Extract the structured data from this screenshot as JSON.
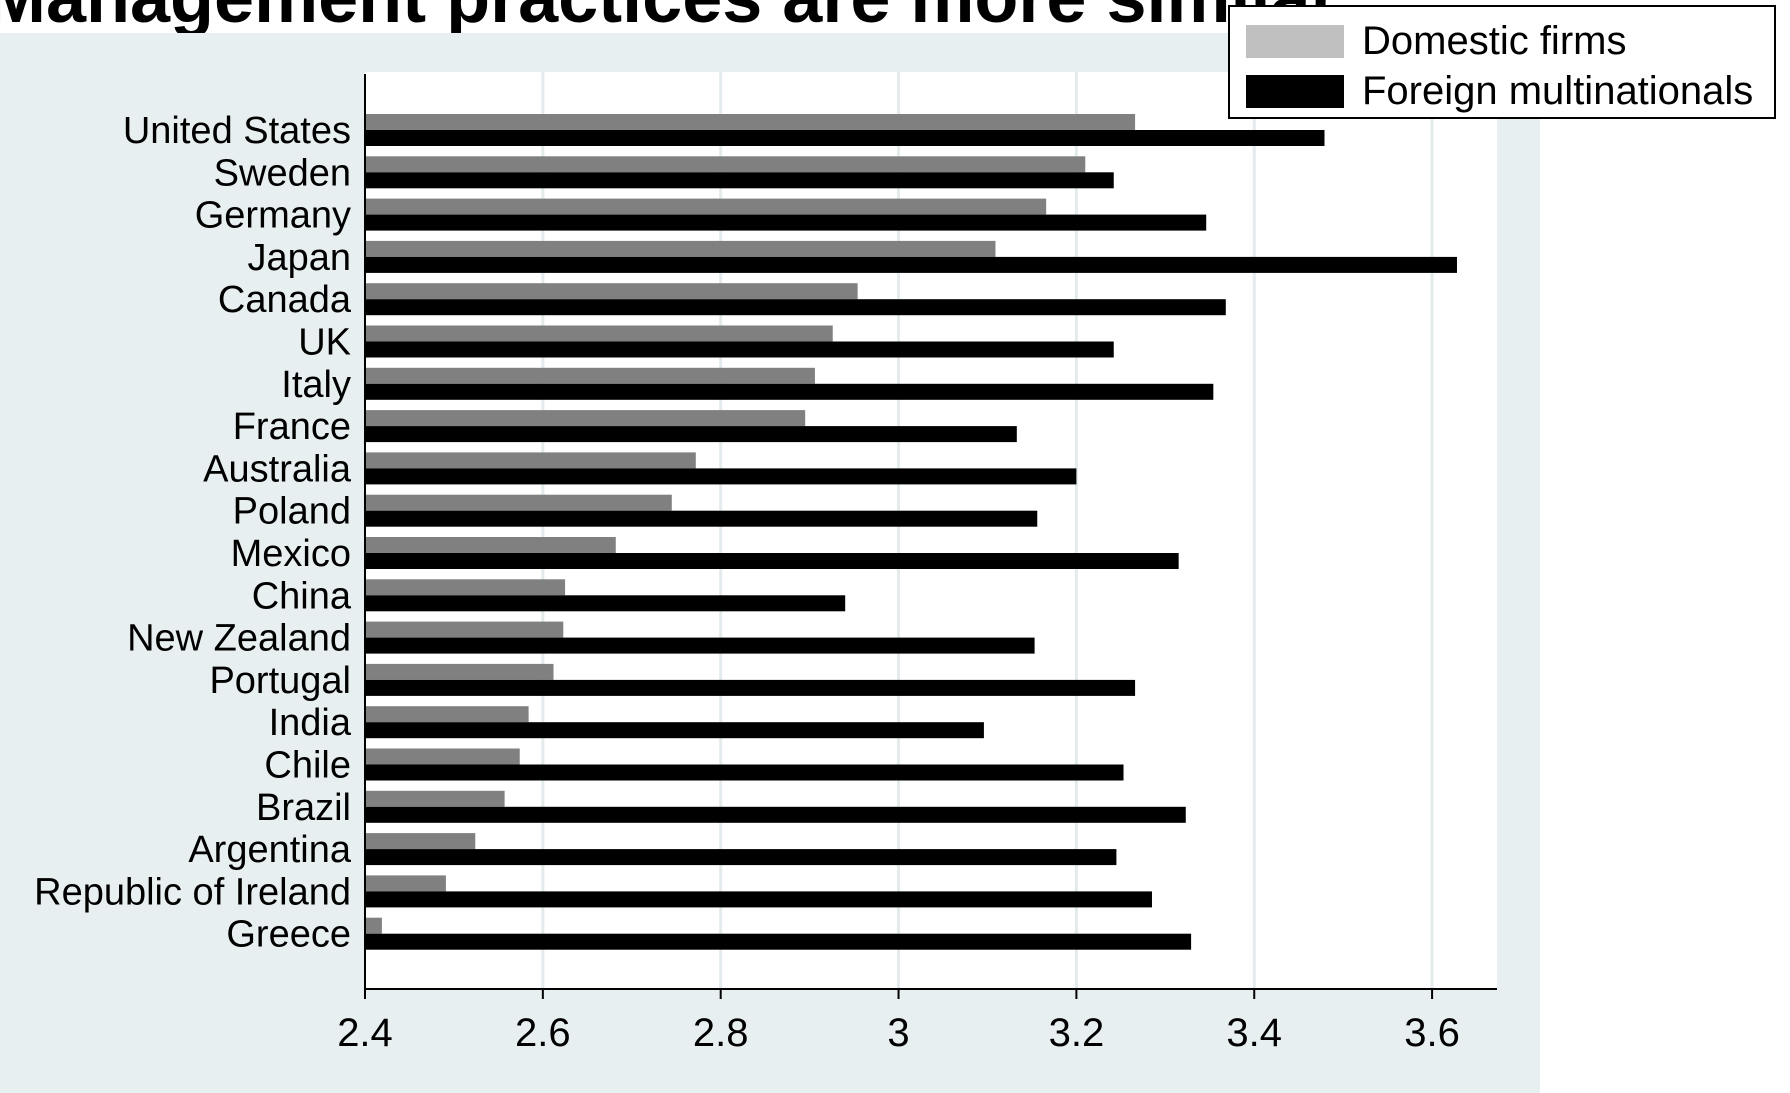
{
  "title": "Management practices are more similar",
  "colors": {
    "panel_bg": "#e8eff0",
    "plot_bg": "#ffffff",
    "grid": "#e3ebec",
    "domestic": "#808080",
    "domestic_legend": "#c0c0c0",
    "foreign": "#000000"
  },
  "legend": [
    {
      "label": "Domestic firms",
      "color": "#c0c0c0"
    },
    {
      "label": "Foreign multinationals",
      "color": "#000000"
    }
  ],
  "chart_data": {
    "type": "bar",
    "orientation": "horizontal",
    "title": "",
    "xlabel": "",
    "ylabel": "",
    "xlim": [
      2.4,
      3.673
    ],
    "xticks": [
      "2.4",
      "2.6",
      "2.8",
      "3",
      "3.2",
      "3.4",
      "3.6"
    ],
    "grid": true,
    "legend_position": "top-right",
    "categories": [
      "United States",
      "Sweden",
      "Germany",
      "Japan",
      "Canada",
      "UK",
      "Italy",
      "France",
      "Australia",
      "Poland",
      "Mexico",
      "China",
      "New Zealand",
      "Portugal",
      "India",
      "Chile",
      "Brazil",
      "Argentina",
      "Republic of Ireland",
      "Greece"
    ],
    "series": [
      {
        "name": "Domestic firms",
        "values": [
          3.266,
          3.21,
          3.166,
          3.109,
          2.954,
          2.926,
          2.906,
          2.895,
          2.772,
          2.745,
          2.682,
          2.625,
          2.623,
          2.612,
          2.584,
          2.574,
          2.557,
          2.524,
          2.491,
          2.419
        ]
      },
      {
        "name": "Foreign multinationals",
        "values": [
          3.479,
          3.242,
          3.346,
          3.628,
          3.368,
          3.242,
          3.354,
          3.133,
          3.2,
          3.156,
          3.315,
          2.94,
          3.153,
          3.266,
          3.096,
          3.253,
          3.323,
          3.245,
          3.285,
          3.329
        ]
      }
    ]
  }
}
